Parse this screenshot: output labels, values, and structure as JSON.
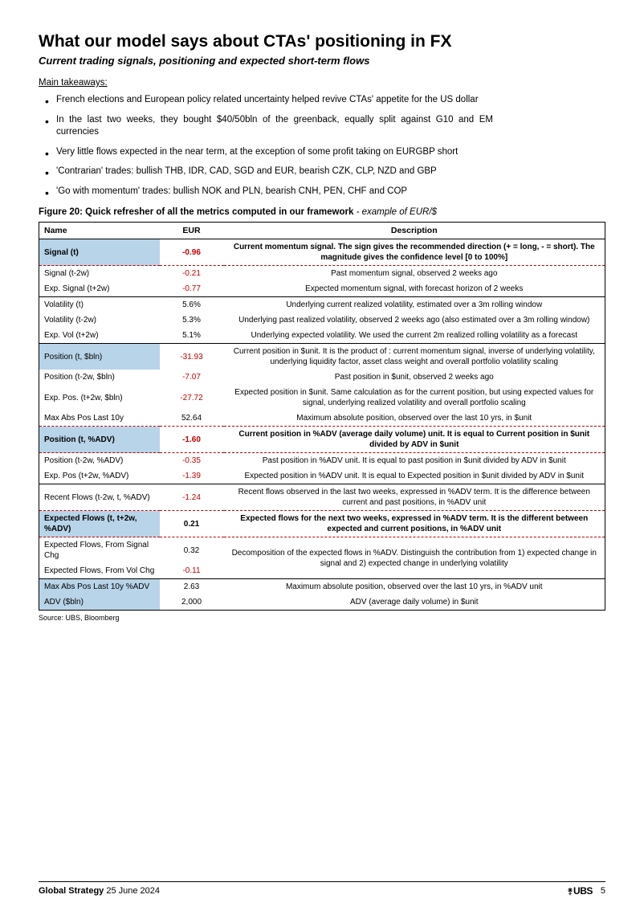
{
  "title": "What our model says about CTAs' positioning in FX",
  "subtitle": "Current trading signals, positioning and expected short-term flows",
  "takeaways_heading": "Main takeaways:",
  "takeaways": [
    "French elections and European policy related uncertainty helped revive CTAs' appetite for the US dollar",
    "In the last two weeks, they bought $40/50bln of the greenback, equally split against G10 and EM currencies",
    "Very little flows expected in the near term, at the exception of some profit taking on EURGBP short",
    "'Contrarian' trades: bullish THB, IDR, CAD, SGD and EUR, bearish CZK, CLP, NZD and GBP",
    "'Go with momentum' trades: bullish NOK and PLN, bearish CNH, PEN, CHF and COP"
  ],
  "figure_caption_bold": "Figure 20: Quick refresher of all the metrics computed in our framework",
  "figure_caption_italic": " - example of EUR/$",
  "table": {
    "headers": [
      "Name",
      "EUR",
      "Description"
    ],
    "rows": [
      {
        "name": "Signal (t)",
        "val": "-0.96",
        "desc": "Current momentum signal. The sign gives the recommended direction (+ = long, - = short). The magnitude gives the confidence level [0 to 100%]",
        "hl": true,
        "bold": true,
        "neg": true,
        "dashtop": true,
        "dashbot": true
      },
      {
        "name": "Signal (t-2w)",
        "val": "-0.21",
        "desc": "Past momentum signal, observed 2 weeks ago",
        "neg": true
      },
      {
        "name": "Exp. Signal (t+2w)",
        "val": "-0.77",
        "desc": "Expected momentum signal, with forecast horizon of 2 weeks",
        "neg": true
      },
      {
        "name": "Volatility (t)",
        "val": "5.6%",
        "desc": "Underlying current realized volatility, estimated over a 3m rolling window",
        "solidtop": true
      },
      {
        "name": "Volatility (t-2w)",
        "val": "5.3%",
        "desc": "Underlying past realized volatility, observed 2 weeks ago (also estimated over a 3m rolling window)"
      },
      {
        "name": "Exp. Vol (t+2w)",
        "val": "5.1%",
        "desc": "Underlying expected volatility. We used the current 2m realized rolling volatility as a forecast"
      },
      {
        "name": "Position (t, $bln)",
        "val": "-31.93",
        "desc": "Current position in $unit. It is the product of : current momentum signal, inverse of underlying volatility, underlying liquidity factor, asset class weight and overall portfolio volatility scaling",
        "hl": true,
        "neg": true,
        "solidtop": true
      },
      {
        "name": "Position (t-2w, $bln)",
        "val": "-7.07",
        "desc": "Past position in $unit, observed 2 weeks ago",
        "neg": true
      },
      {
        "name": "Exp. Pos. (t+2w, $bln)",
        "val": "-27.72",
        "desc": "Expected position in $unit. Same calculation as for the current position, but using expected values for signal, underlying realized volatility and overall portfolio scaling",
        "neg": true
      },
      {
        "name": "Max Abs  Pos Last 10y",
        "val": "52.64",
        "desc": "Maximum absolute position, observed over the last 10 yrs, in $unit"
      },
      {
        "name": "Position (t, %ADV)",
        "val": "-1.60",
        "desc": "Current position in %ADV (average daily volume) unit. It is equal to Current position in $unit divided by ADV in $unit",
        "hl": true,
        "bold": true,
        "neg": true,
        "dashtop": true,
        "dashbot": true
      },
      {
        "name": "Position (t-2w, %ADV)",
        "val": "-0.35",
        "desc": "Past position in %ADV unit. It is equal to past position in $unit divided by ADV in $unit",
        "neg": true
      },
      {
        "name": "Exp. Pos (t+2w, %ADV)",
        "val": "-1.39",
        "desc": "Expected position in %ADV unit. It is equal to Expected position in $unit divided by ADV in $unit",
        "neg": true
      },
      {
        "name": "Recent Flows (t-2w, t, %ADV)",
        "val": "-1.24",
        "desc": "Recent flows observed in the last two weeks, expressed in %ADV term. It is the difference between current and past positions, in %ADV unit",
        "neg": true,
        "solidtop": true
      },
      {
        "name": "Expected Flows (t, t+2w, %ADV)",
        "val": "0.21",
        "desc": "Expected flows for the next two weeks, expressed in %ADV term. It is the different between expected and current positions, in %ADV unit",
        "hl": true,
        "bold": true,
        "dashtop": true,
        "dashbot": true
      },
      {
        "name": "Expected Flows, From Signal Chg",
        "val": "0.32",
        "desc": "Decomposition of the expected flows in %ADV. Distinguish the contribution from 1) expected change in signal and 2) expected change in underlying volatility",
        "rowspan_desc": 2
      },
      {
        "name": "Expected Flows, From Vol Chg",
        "val": "-0.11",
        "desc": "",
        "neg": true,
        "skip_desc": true
      },
      {
        "name": "Max Abs Pos  Last 10y %ADV",
        "val": "2.63",
        "desc": "Maximum absolute position, observed over the last 10 yrs, in %ADV unit",
        "hl": true,
        "solidtop": true
      },
      {
        "name": "ADV ($bln)",
        "val": "2,000",
        "desc": "ADV (average daily volume) in $unit",
        "hl": true
      }
    ],
    "col_widths": {
      "name": 150,
      "val": 80
    },
    "highlight_color": "#b8d4e8",
    "neg_color": "#c00000",
    "dash_color": "#c00000"
  },
  "source": "Source: UBS, Bloomberg",
  "footer": {
    "left_bold": "Global Strategy",
    "left_date": "  25 June 2024",
    "brand": "UBS",
    "keys": "⚵",
    "page": "5"
  }
}
